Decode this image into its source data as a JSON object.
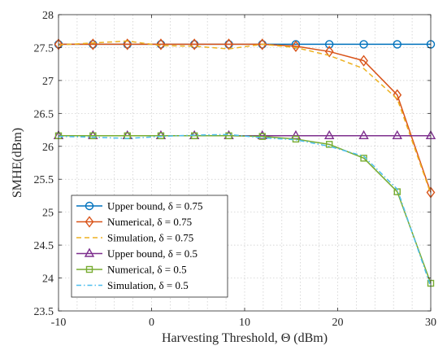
{
  "chart_data": {
    "type": "line",
    "xlabel": "Harvesting Threshold, Θ (dBm)",
    "ylabel": "SMHE(dBm)",
    "xlim": [
      -10,
      30
    ],
    "ylim": [
      23.5,
      28
    ],
    "xticks": [
      -10,
      0,
      10,
      20,
      30
    ],
    "yticks": [
      23.5,
      24,
      24.5,
      25,
      25.5,
      26,
      26.5,
      27,
      27.5,
      28
    ],
    "xticks_label": [
      "-10",
      "0",
      "10",
      "20",
      "30"
    ],
    "yticks_label": [
      "23.5",
      "24",
      "24.5",
      "25",
      "25.5",
      "26",
      "26.5",
      "27",
      "27.5",
      "28"
    ],
    "grid": "on",
    "legend_position": "bottom-left",
    "series": [
      {
        "name": "Upper bound, δ = 0.75",
        "color": "#0072BD",
        "style": "solid",
        "marker": "circle",
        "x": [
          -10,
          -6.3,
          -2.6,
          1.0,
          4.6,
          8.3,
          11.9,
          15.5,
          19.1,
          22.8,
          26.4,
          30
        ],
        "y": [
          27.55,
          27.55,
          27.55,
          27.55,
          27.55,
          27.55,
          27.55,
          27.55,
          27.55,
          27.55,
          27.55,
          27.55
        ]
      },
      {
        "name": "Numerical, δ = 0.75",
        "color": "#D95319",
        "style": "solid",
        "marker": "diamond",
        "x": [
          -10,
          -6.3,
          -2.6,
          1.0,
          4.6,
          8.3,
          11.9,
          15.5,
          19.1,
          22.8,
          26.4,
          30
        ],
        "y": [
          27.55,
          27.55,
          27.55,
          27.55,
          27.55,
          27.55,
          27.55,
          27.52,
          27.44,
          27.3,
          26.78,
          25.3
        ]
      },
      {
        "name": "Simulation, δ = 0.75",
        "color": "#EDB120",
        "style": "dashed",
        "marker": "none",
        "x": [
          -10,
          -6.3,
          -2.6,
          1.0,
          4.6,
          8.3,
          11.9,
          15.5,
          19.1,
          22.8,
          26.4,
          30
        ],
        "y": [
          27.54,
          27.57,
          27.6,
          27.53,
          27.52,
          27.48,
          27.55,
          27.5,
          27.38,
          27.18,
          26.72,
          25.28
        ]
      },
      {
        "name": "Upper bound, δ = 0.5",
        "color": "#7E2F8E",
        "style": "solid",
        "marker": "triangle",
        "x": [
          -10,
          -6.3,
          -2.6,
          1.0,
          4.6,
          8.3,
          11.9,
          15.5,
          19.1,
          22.8,
          26.4,
          30
        ],
        "y": [
          26.16,
          26.16,
          26.16,
          26.16,
          26.16,
          26.16,
          26.16,
          26.16,
          26.16,
          26.16,
          26.16,
          26.16
        ]
      },
      {
        "name": "Numerical, δ = 0.5",
        "color": "#77AC30",
        "style": "solid",
        "marker": "square",
        "x": [
          -10,
          -6.3,
          -2.6,
          1.0,
          4.6,
          8.3,
          11.9,
          15.5,
          19.1,
          22.8,
          26.4,
          30
        ],
        "y": [
          26.16,
          26.16,
          26.16,
          26.16,
          26.16,
          26.16,
          26.15,
          26.11,
          26.03,
          25.82,
          25.31,
          23.92
        ]
      },
      {
        "name": "Simulation, δ = 0.5",
        "color": "#4DBEEE",
        "style": "dashdot",
        "marker": "none",
        "x": [
          -10,
          -6.3,
          -2.6,
          1.0,
          4.6,
          8.3,
          11.9,
          15.5,
          19.1,
          22.8,
          26.4,
          30
        ],
        "y": [
          26.15,
          26.14,
          26.12,
          26.15,
          26.17,
          26.18,
          26.13,
          26.1,
          26.0,
          25.85,
          25.35,
          23.87
        ]
      }
    ]
  }
}
